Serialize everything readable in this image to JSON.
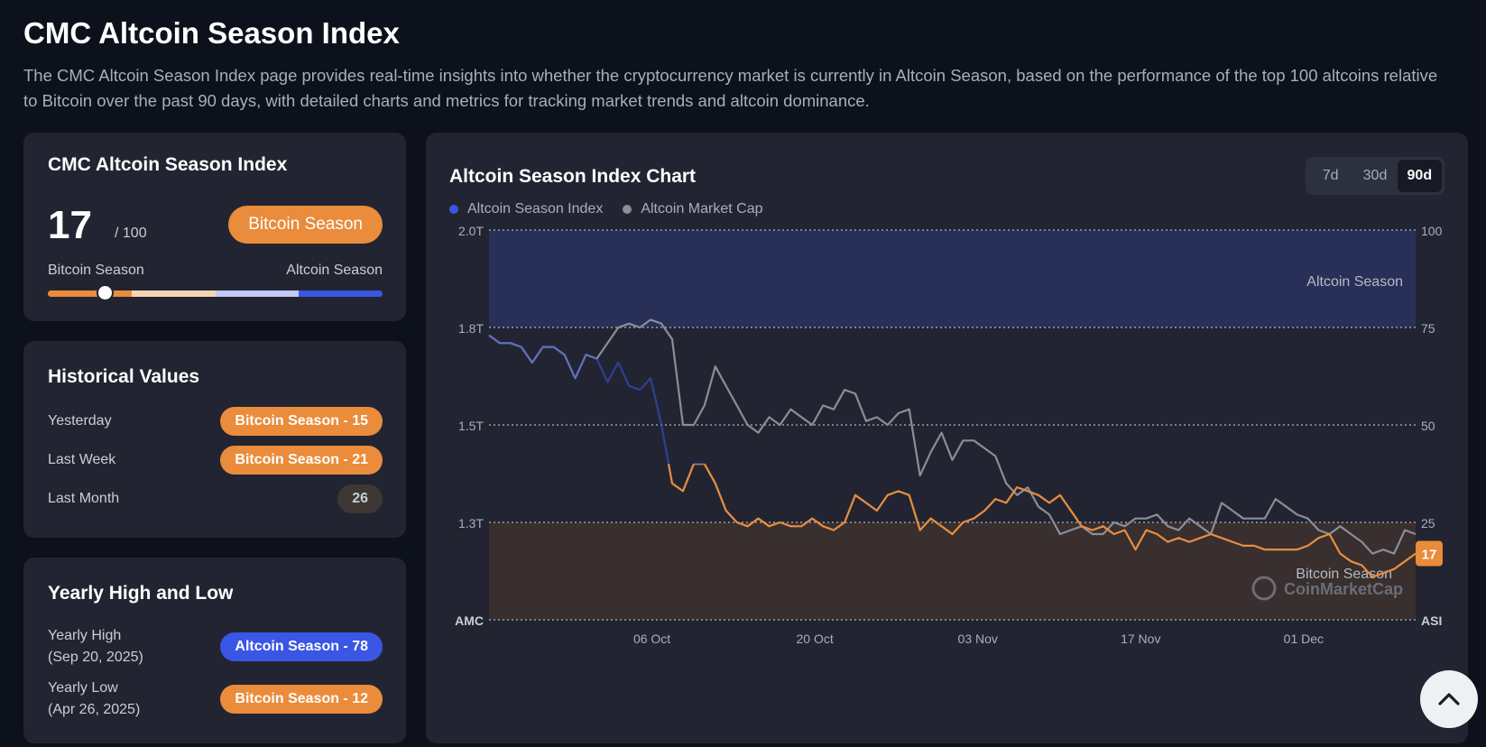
{
  "page": {
    "title": "CMC Altcoin Season Index",
    "description": "The CMC Altcoin Season Index page provides real-time insights into whether the cryptocurrency market is currently in Altcoin Season, based on the performance of the top 100 altcoins relative to Bitcoin over the past 90 days, with detailed charts and metrics for tracking market trends and altcoin dominance."
  },
  "index_card": {
    "title": "CMC Altcoin Season Index",
    "value": "17",
    "max": "/ 100",
    "status": "Bitcoin Season",
    "left_label": "Bitcoin Season",
    "right_label": "Altcoin Season",
    "position_fraction": 0.17
  },
  "historical": {
    "title": "Historical Values",
    "rows": [
      {
        "label": "Yesterday",
        "value": "Bitcoin Season - 15"
      },
      {
        "label": "Last Week",
        "value": "Bitcoin Season - 21"
      },
      {
        "label": "Last Month",
        "value": "26"
      }
    ]
  },
  "yearly": {
    "title": "Yearly High and Low",
    "high_label": "Yearly High",
    "high_date": "(Sep 20, 2025)",
    "high_value": "Altcoin Season - 78",
    "low_label": "Yearly Low",
    "low_date": "(Apr 26, 2025)",
    "low_value": "Bitcoin Season - 12"
  },
  "chart_card": {
    "title": "Altcoin Season Index Chart",
    "ranges": [
      "7d",
      "30d",
      "90d"
    ],
    "active_range": "90d"
  },
  "colors": {
    "bitcoin": "#ea8c3c",
    "altcoin": "#3a56e4",
    "marketcap": "#8a8e99"
  },
  "chart_data": {
    "type": "line",
    "title": "Altcoin Season Index Chart",
    "legend": [
      "Altcoin Season Index",
      "Altcoin Market Cap"
    ],
    "left_axis": {
      "label": "AMC",
      "ticks": [
        "2.0T",
        "1.8T",
        "1.5T",
        "1.3T"
      ]
    },
    "right_axis": {
      "label": "ASI",
      "ticks": [
        "100",
        "75",
        "50",
        "25"
      ],
      "ylim": [
        0,
        100
      ]
    },
    "x_ticks": [
      "06 Oct",
      "20 Oct",
      "03 Nov",
      "17 Nov",
      "01 Dec"
    ],
    "zones": {
      "altcoin": "Altcoin Season",
      "bitcoin": "Bitcoin Season"
    },
    "current_value": "17",
    "watermark": "CoinMarketCap",
    "series": [
      {
        "name": "Altcoin Season Index",
        "values": [
          73,
          71,
          71,
          70,
          66,
          70,
          70,
          68,
          62,
          68,
          67,
          61,
          66,
          60,
          59,
          62,
          50,
          35,
          33,
          40,
          40,
          35,
          28,
          25,
          24,
          26,
          24,
          25,
          24,
          24,
          26,
          24,
          23,
          25,
          32,
          30,
          28,
          32,
          33,
          32,
          23,
          26,
          24,
          22,
          25,
          26,
          28,
          31,
          30,
          34,
          33,
          32,
          30,
          32,
          28,
          24,
          23,
          24,
          22,
          23,
          18,
          23,
          22,
          20,
          21,
          20,
          21,
          22,
          21,
          20,
          19,
          19,
          18,
          18,
          18,
          18,
          19,
          21,
          22,
          17,
          15,
          14,
          11,
          12,
          13,
          15,
          17
        ]
      },
      {
        "name": "Altcoin Market Cap",
        "values": [
          73,
          71,
          71,
          70,
          66,
          70,
          70,
          68,
          62,
          68,
          67,
          71,
          75,
          76,
          75,
          77,
          76,
          72,
          50,
          50,
          55,
          65,
          60,
          55,
          50,
          48,
          52,
          50,
          54,
          52,
          50,
          55,
          54,
          59,
          58,
          51,
          52,
          50,
          53,
          54,
          37,
          43,
          48,
          41,
          46,
          46,
          44,
          42,
          35,
          32,
          34,
          29,
          27,
          22,
          23,
          24,
          22,
          22,
          25,
          24,
          26,
          26,
          27,
          24,
          23,
          26,
          24,
          22,
          30,
          28,
          26,
          26,
          26,
          31,
          29,
          27,
          26,
          23,
          22,
          24,
          22,
          20,
          17,
          18,
          17,
          23,
          22
        ]
      }
    ]
  }
}
